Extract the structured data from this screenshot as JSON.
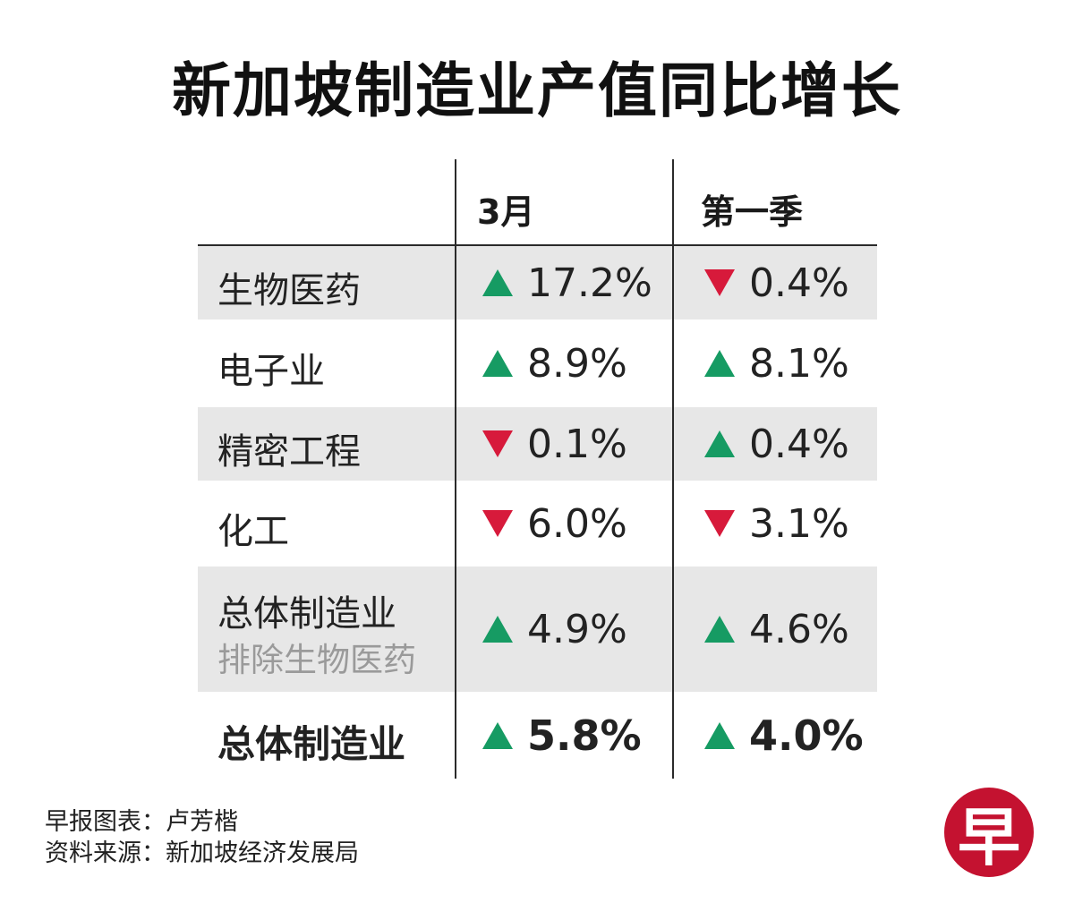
{
  "title": "新加坡制造业产值同比增长",
  "colors": {
    "up": "#169b63",
    "down": "#d71a3b",
    "shade": "#e7e7e7",
    "brand": "#c41230"
  },
  "chart_data": {
    "type": "table",
    "title": "新加坡制造业产值同比增长",
    "columns": [
      "3月",
      "第一季"
    ],
    "rows": [
      {
        "label": "生物医药",
        "sublabel": "",
        "march": "17.2%",
        "march_dir": "up",
        "q1": "0.4%",
        "q1_dir": "down",
        "shaded": true,
        "bold": false
      },
      {
        "label": "电子业",
        "sublabel": "",
        "march": "8.9%",
        "march_dir": "up",
        "q1": "8.1%",
        "q1_dir": "up",
        "shaded": false,
        "bold": false
      },
      {
        "label": "精密工程",
        "sublabel": "",
        "march": "0.1%",
        "march_dir": "down",
        "q1": "0.4%",
        "q1_dir": "up",
        "shaded": true,
        "bold": false
      },
      {
        "label": "化工",
        "sublabel": "",
        "march": "6.0%",
        "march_dir": "down",
        "q1": "3.1%",
        "q1_dir": "down",
        "shaded": false,
        "bold": false
      },
      {
        "label": "总体制造业",
        "sublabel": "排除生物医药",
        "march": "4.9%",
        "march_dir": "up",
        "q1": "4.6%",
        "q1_dir": "up",
        "shaded": true,
        "bold": false
      },
      {
        "label": "总体制造业",
        "sublabel": "",
        "march": "5.8%",
        "march_dir": "up",
        "q1": "4.0%",
        "q1_dir": "up",
        "shaded": false,
        "bold": true
      }
    ]
  },
  "credits": {
    "chart_by": "早报图表：卢芳楷",
    "source": "资料来源：新加坡经济发展局"
  },
  "logo": {
    "text": "早"
  }
}
